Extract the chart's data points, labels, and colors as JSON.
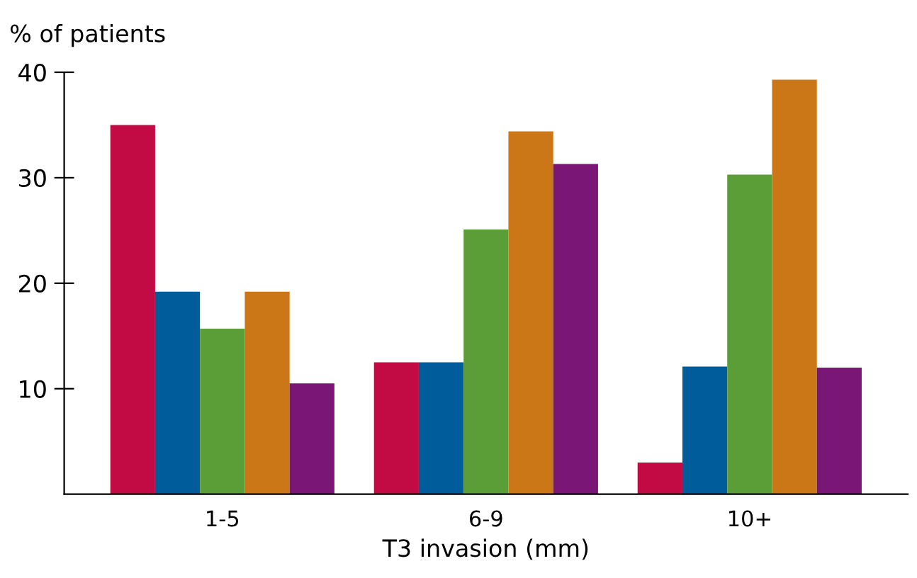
{
  "chart_data": {
    "type": "bar",
    "xlabel": "T3 invasion (mm)",
    "ylabel": "% of patients",
    "categories": [
      "1-5",
      "6-9",
      "10+"
    ],
    "series": [
      {
        "color": "#c20b45",
        "values": [
          35.0,
          12.5,
          3.0
        ]
      },
      {
        "color": "#005c9a",
        "values": [
          19.2,
          12.5,
          12.1
        ]
      },
      {
        "color": "#5b9e38",
        "values": [
          15.7,
          25.1,
          30.3
        ]
      },
      {
        "color": "#cb7717",
        "values": [
          19.2,
          34.4,
          39.3
        ]
      },
      {
        "color": "#7a1776",
        "values": [
          10.5,
          31.3,
          12.0
        ]
      }
    ],
    "ylim": [
      0,
      40
    ],
    "yticks": [
      10,
      20,
      30,
      40
    ],
    "grid": false
  }
}
